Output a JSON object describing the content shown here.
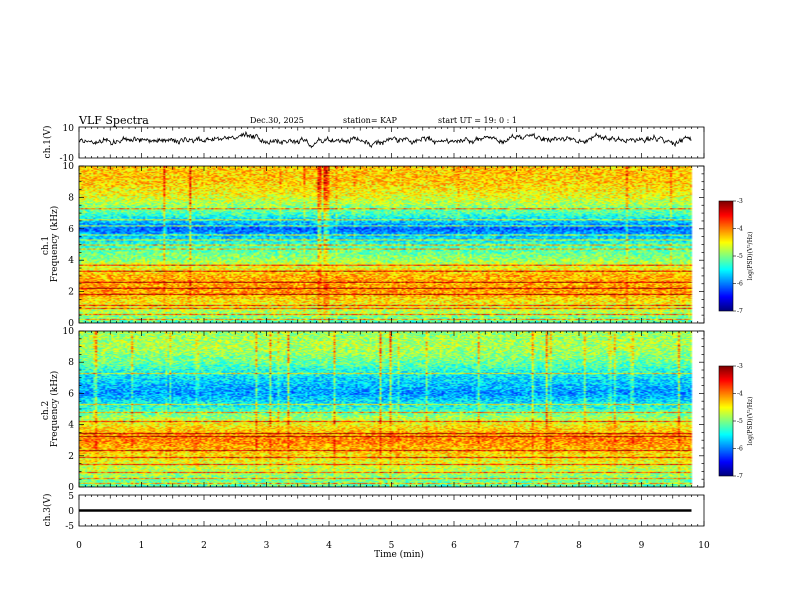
{
  "header": {
    "title": "VLF Spectra",
    "date": "Dec.30, 2025",
    "station": "station= KAP",
    "start": "start  UT =   19: 0   : 1"
  },
  "chart_data": [
    {
      "name": "ch1-waveform",
      "type": "line",
      "ylabel": "ch.1(V)",
      "ylim": [
        -10,
        10
      ],
      "ytick_labels": [
        "10",
        "-10"
      ],
      "x_range_min": [
        0,
        9.8
      ],
      "mean": 1.5,
      "amplitude": 3.5
    },
    {
      "name": "ch1-spectrogram",
      "type": "heatmap",
      "ylabel": "ch.1\nFrequency  (kHz)",
      "ylim": [
        0,
        10
      ],
      "ytick_labels": [
        "0",
        "2",
        "4",
        "6",
        "8",
        "10"
      ],
      "colorbar": {
        "label": "log(PSD)(V²/Hz)",
        "range": [
          -7,
          -3
        ],
        "tick_labels": [
          "-3",
          "-4",
          "-5",
          "-6",
          "-7"
        ]
      },
      "freq_profile_kHz": [
        [
          0,
          -5.2
        ],
        [
          1,
          -4.6
        ],
        [
          2,
          -4.1
        ],
        [
          3,
          -4.2
        ],
        [
          4,
          -4.9
        ],
        [
          5,
          -5.3
        ],
        [
          6,
          -6.1
        ],
        [
          7,
          -5.2
        ],
        [
          8,
          -4.6
        ],
        [
          9,
          -4.3
        ],
        [
          10,
          -4.3
        ]
      ],
      "tone_lines_kHz": [
        0.2,
        0.5,
        0.9,
        1.1,
        1.8,
        2.2,
        2.6,
        3.3,
        3.7,
        4.7,
        5.0,
        5.3,
        5.6,
        6.2,
        6.6,
        7.3
      ]
    },
    {
      "name": "ch2-spectrogram",
      "type": "heatmap",
      "ylabel": "ch.2\nFrequency  (kHz)",
      "ylim": [
        0,
        10
      ],
      "ytick_labels": [
        "0",
        "2",
        "4",
        "6",
        "8",
        "10"
      ],
      "colorbar": {
        "label": "log(PSD)(V²/Hz)",
        "range": [
          -7,
          -3
        ],
        "tick_labels": [
          "-3",
          "-4",
          "-5",
          "-6",
          "-7"
        ]
      },
      "freq_profile_kHz": [
        [
          0,
          -5.2
        ],
        [
          1,
          -4.8
        ],
        [
          2,
          -4.4
        ],
        [
          3,
          -4.0
        ],
        [
          4,
          -4.5
        ],
        [
          5,
          -5.3
        ],
        [
          6,
          -5.9
        ],
        [
          7,
          -5.6
        ],
        [
          8,
          -5.1
        ],
        [
          9,
          -4.8
        ],
        [
          10,
          -4.9
        ]
      ],
      "tone_lines_kHz": [
        0.2,
        0.5,
        0.9,
        1.4,
        1.9,
        2.3,
        3.2,
        3.4,
        4.2,
        4.8,
        5.3,
        7.3
      ]
    },
    {
      "name": "ch3-waveform",
      "type": "line",
      "ylabel": "ch.3(V)",
      "ylim": [
        -5,
        5
      ],
      "ytick_labels": [
        "5",
        "0",
        "-5"
      ],
      "x_range_min": [
        0,
        9.8
      ],
      "band": [
        -0.4,
        0.4
      ]
    }
  ],
  "x_axis": {
    "label": "Time  (min)",
    "range": [
      0,
      10
    ],
    "tick_labels": [
      "0",
      "1",
      "2",
      "3",
      "4",
      "5",
      "6",
      "7",
      "8",
      "9",
      "10"
    ]
  }
}
